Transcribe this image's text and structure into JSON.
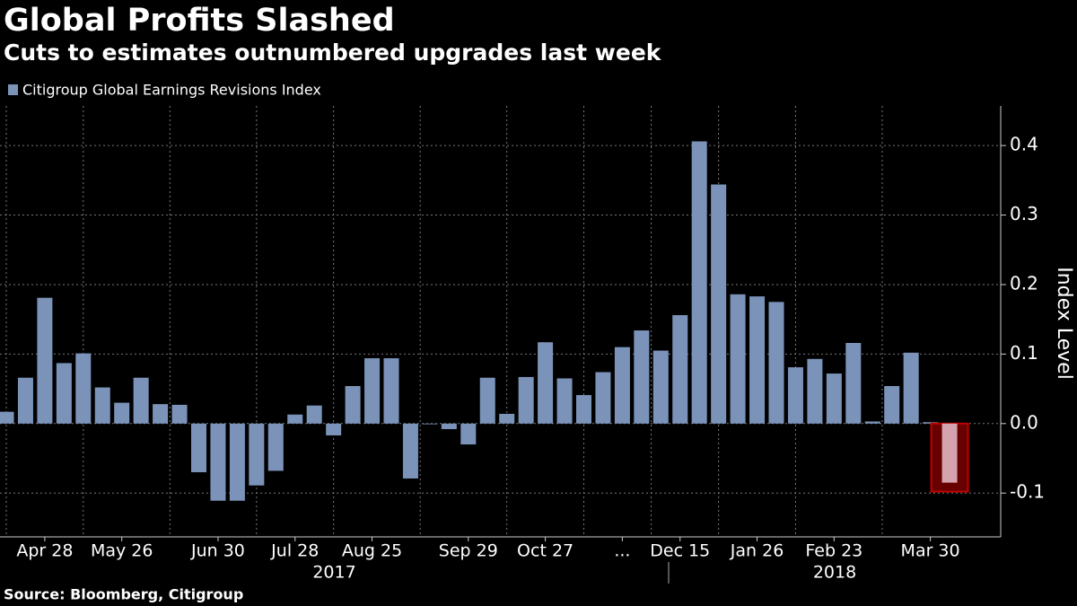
{
  "chart_data": {
    "type": "bar",
    "title": "Global Profits Slashed",
    "subtitle": "Cuts to estimates outnumbered upgrades last week",
    "source": "Source: Bloomberg, Citigroup",
    "y_label": "Index Level",
    "series": [
      {
        "name": "Citigroup Global Earnings Revisions Index",
        "color": "#7b93b9",
        "values": [
          0.017,
          0.066,
          0.181,
          0.087,
          0.101,
          0.052,
          0.03,
          0.066,
          0.028,
          0.027,
          -0.07,
          -0.111,
          -0.111,
          -0.089,
          -0.068,
          0.013,
          0.026,
          -0.017,
          0.054,
          0.094,
          0.094,
          -0.079,
          -0.001,
          -0.008,
          -0.03,
          0.066,
          0.014,
          0.067,
          0.117,
          0.065,
          0.041,
          0.074,
          0.11,
          0.134,
          0.105,
          0.156,
          0.406,
          0.344,
          0.186,
          0.183,
          0.175,
          0.081,
          0.093,
          0.072,
          0.116,
          0.003,
          0.054,
          0.102,
          0.002,
          -0.085
        ]
      }
    ],
    "categories": [
      null,
      null,
      "Apr 28",
      null,
      null,
      null,
      "May 26",
      null,
      null,
      null,
      null,
      "Jun 30",
      null,
      null,
      null,
      "Jul 28",
      null,
      null,
      null,
      "Aug 25",
      null,
      null,
      null,
      null,
      "Sep 29",
      null,
      null,
      null,
      "Oct 27",
      null,
      null,
      null,
      "...",
      null,
      null,
      "Dec 15",
      null,
      null,
      null,
      "Jan 26",
      null,
      null,
      null,
      "Feb 23",
      null,
      null,
      null,
      null,
      "Mar 30",
      null
    ],
    "year_labels": [
      "2017",
      "2018"
    ],
    "highlight_color": "#d4a3ae",
    "highlight_box_color": "#c00000",
    "ylim": [
      -0.163,
      0.457
    ],
    "yticks": [
      -0.1,
      {
        "value": 0,
        "label": "0.0"
      },
      0.1,
      0.2,
      0.3,
      0.4
    ],
    "grid": true
  }
}
